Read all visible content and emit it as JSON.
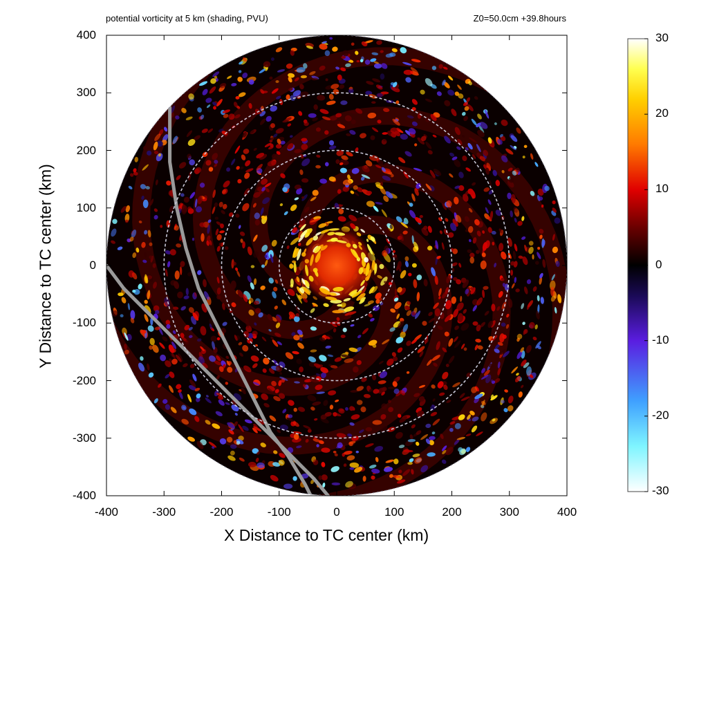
{
  "header": {
    "left": "potential vorticity at 5 km (shading, PVU)",
    "right": "Z0=50.0cm  +39.8hours"
  },
  "chart_data": {
    "type": "heatmap",
    "title": "potential vorticity at 5 km (shading, PVU)",
    "annotation": "Z0=50.0cm  +39.8hours",
    "xlabel": "X Distance to TC center (km)",
    "ylabel": "Y Distance to TC center (km)",
    "xlim": [
      -400,
      400
    ],
    "ylim": [
      -400,
      400
    ],
    "x_ticks": [
      -400,
      -300,
      -200,
      -100,
      0,
      100,
      200,
      300,
      400
    ],
    "y_ticks": [
      -400,
      -300,
      -200,
      -100,
      0,
      100,
      200,
      300,
      400
    ],
    "x_tick_labels": [
      "-400",
      "-300",
      "-200",
      "-100",
      "0",
      "100",
      "200",
      "300",
      "400"
    ],
    "y_tick_labels": [
      "-400",
      "-300",
      "-200",
      "-100",
      "0",
      "100",
      "200",
      "300",
      "400"
    ],
    "domain_radius_km": 400,
    "range_rings_km": [
      100,
      200,
      300
    ],
    "colorbar": {
      "range": [
        -30,
        30
      ],
      "ticks": [
        30,
        20,
        10,
        0,
        -10,
        -20,
        -30
      ],
      "tick_labels": [
        "30",
        "20",
        "10",
        "0",
        "-10",
        "-20",
        "-30"
      ],
      "stops": [
        {
          "value": -30,
          "color": "#ffffff"
        },
        {
          "value": -24,
          "color": "#7ff5ff"
        },
        {
          "value": -18,
          "color": "#3fa0ff"
        },
        {
          "value": -10,
          "color": "#5a1de0"
        },
        {
          "value": -4,
          "color": "#1a0a55"
        },
        {
          "value": 0,
          "color": "#000000"
        },
        {
          "value": 5,
          "color": "#6a0000"
        },
        {
          "value": 10,
          "color": "#e00000"
        },
        {
          "value": 16,
          "color": "#ff7a00"
        },
        {
          "value": 22,
          "color": "#ffd000"
        },
        {
          "value": 26,
          "color": "#ffff50"
        },
        {
          "value": 30,
          "color": "#ffffff"
        }
      ]
    },
    "tracks": [
      {
        "points": [
          [
            -290,
            275
          ],
          [
            -290,
            180
          ],
          [
            -278,
            100
          ],
          [
            -262,
            30
          ],
          [
            -240,
            -40
          ],
          [
            -210,
            -100
          ],
          [
            -180,
            -160
          ],
          [
            -150,
            -220
          ],
          [
            -115,
            -290
          ],
          [
            -85,
            -330
          ],
          [
            -55,
            -380
          ],
          [
            -45,
            -400
          ]
        ]
      },
      {
        "points": [
          [
            -400,
            0
          ],
          [
            -370,
            -40
          ],
          [
            -330,
            -80
          ],
          [
            -280,
            -130
          ],
          [
            -230,
            -180
          ],
          [
            -180,
            -230
          ],
          [
            -130,
            -280
          ],
          [
            -80,
            -330
          ],
          [
            -40,
            -370
          ],
          [
            -15,
            -400
          ]
        ]
      }
    ]
  }
}
